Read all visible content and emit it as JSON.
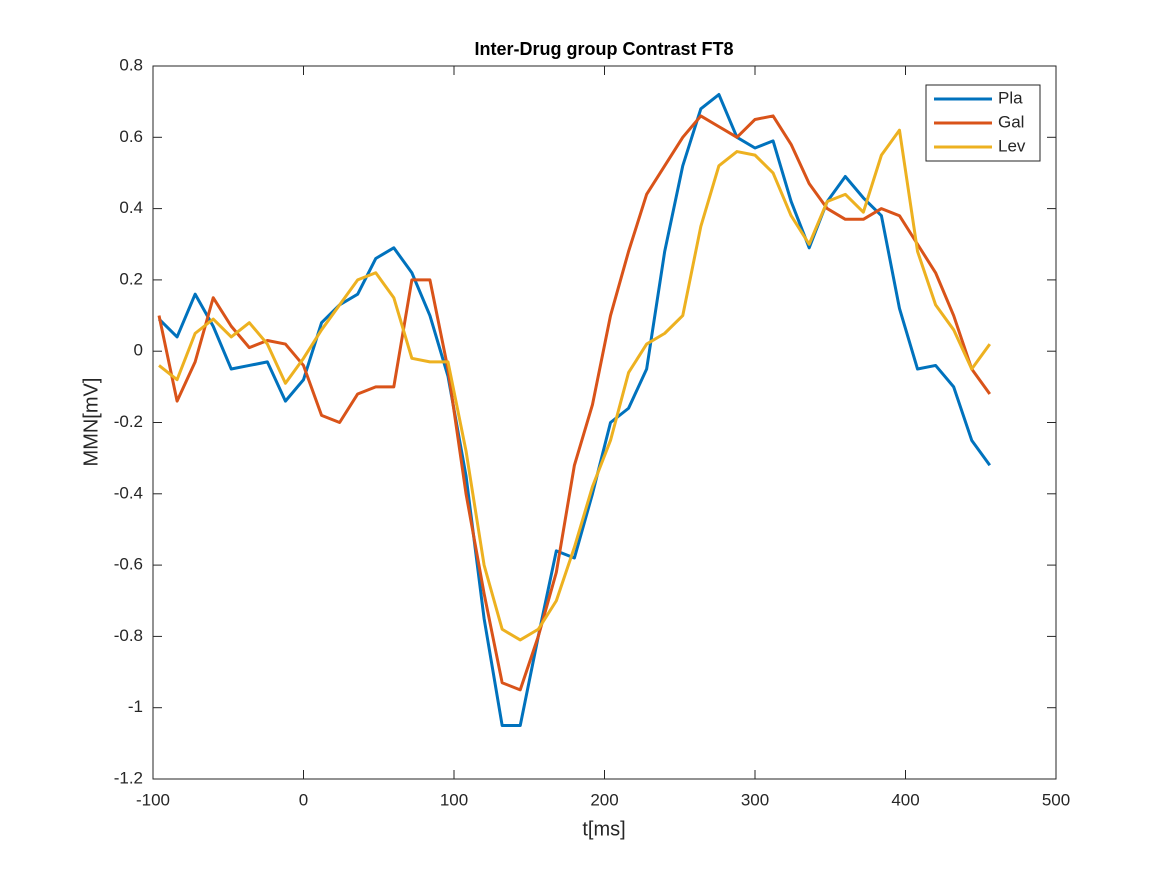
{
  "chart_data": {
    "type": "line",
    "title": "Inter-Drug group Contrast FT8",
    "x_label": "t[ms]",
    "y_label": "MMN[mV]",
    "x": [
      -96,
      -84,
      -72,
      -60,
      -48,
      -36,
      -24,
      -12,
      0,
      12,
      24,
      36,
      48,
      60,
      72,
      84,
      96,
      108,
      120,
      132,
      144,
      156,
      168,
      180,
      192,
      204,
      216,
      228,
      240,
      252,
      264,
      276,
      288,
      300,
      312,
      324,
      336,
      348,
      360,
      372,
      384,
      396,
      408,
      420,
      432,
      444,
      456
    ],
    "series": [
      {
        "name": "Pla",
        "color": "#0072BD",
        "values": [
          0.09,
          0.04,
          0.16,
          0.07,
          -0.05,
          -0.04,
          -0.03,
          -0.14,
          -0.08,
          0.08,
          0.13,
          0.16,
          0.26,
          0.29,
          0.22,
          0.1,
          -0.07,
          -0.35,
          -0.75,
          -1.05,
          -1.05,
          -0.8,
          -0.56,
          -0.58,
          -0.4,
          -0.2,
          -0.16,
          -0.05,
          0.28,
          0.52,
          0.68,
          0.72,
          0.6,
          0.57,
          0.59,
          0.42,
          0.29,
          0.42,
          0.49,
          0.43,
          0.38,
          0.12,
          -0.05,
          -0.04,
          -0.1,
          -0.25,
          -0.32
        ]
      },
      {
        "name": "Gal",
        "color": "#D95319",
        "values": [
          0.1,
          -0.14,
          -0.03,
          0.15,
          0.07,
          0.01,
          0.03,
          0.02,
          -0.04,
          -0.18,
          -0.2,
          -0.12,
          -0.1,
          -0.1,
          0.2,
          0.2,
          -0.05,
          -0.4,
          -0.68,
          -0.93,
          -0.95,
          -0.8,
          -0.62,
          -0.32,
          -0.15,
          0.1,
          0.28,
          0.44,
          0.52,
          0.6,
          0.66,
          0.63,
          0.6,
          0.65,
          0.66,
          0.58,
          0.47,
          0.4,
          0.37,
          0.37,
          0.4,
          0.38,
          0.3,
          0.22,
          0.1,
          -0.05,
          -0.12
        ]
      },
      {
        "name": "Lev",
        "color": "#EDB120",
        "values": [
          -0.04,
          -0.08,
          0.05,
          0.09,
          0.04,
          0.08,
          0.02,
          -0.09,
          -0.02,
          0.06,
          0.13,
          0.2,
          0.22,
          0.15,
          -0.02,
          -0.03,
          -0.03,
          -0.28,
          -0.6,
          -0.78,
          -0.81,
          -0.78,
          -0.7,
          -0.55,
          -0.38,
          -0.25,
          -0.06,
          0.02,
          0.05,
          0.1,
          0.35,
          0.52,
          0.56,
          0.55,
          0.5,
          0.38,
          0.3,
          0.42,
          0.44,
          0.39,
          0.55,
          0.62,
          0.28,
          0.13,
          0.06,
          -0.05,
          0.02
        ]
      }
    ],
    "xlim": [
      -100,
      500
    ],
    "xticks": [
      -100,
      0,
      100,
      200,
      300,
      400,
      500
    ],
    "ylim": [
      -1.2,
      0.8
    ],
    "yticks": [
      -1.2,
      -1,
      -0.8,
      -0.6,
      -0.4,
      -0.2,
      0,
      0.2,
      0.4,
      0.6,
      0.8
    ],
    "legend": "top-right",
    "grid": false
  }
}
